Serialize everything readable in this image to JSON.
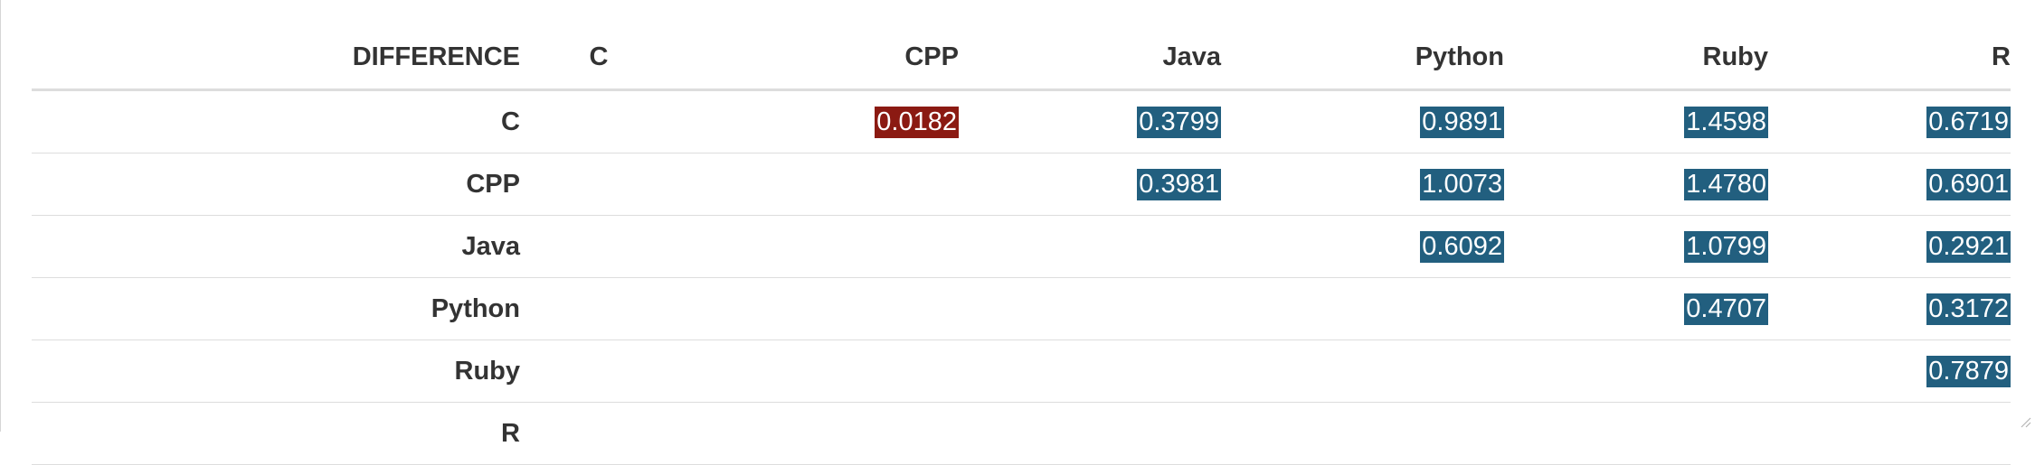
{
  "table": {
    "header": [
      "DIFFERENCE",
      "C",
      "CPP",
      "Java",
      "Python",
      "Ruby",
      "R"
    ],
    "rows": [
      {
        "label": "C",
        "cells": [
          "",
          "0.0182",
          "0.3799",
          "0.9891",
          "1.4598",
          "0.6719"
        ]
      },
      {
        "label": "CPP",
        "cells": [
          "",
          "",
          "0.3981",
          "1.0073",
          "1.4780",
          "0.6901"
        ]
      },
      {
        "label": "Java",
        "cells": [
          "",
          "",
          "",
          "0.6092",
          "1.0799",
          "0.2921"
        ]
      },
      {
        "label": "Python",
        "cells": [
          "",
          "",
          "",
          "",
          "0.4707",
          "0.3172"
        ]
      },
      {
        "label": "Ruby",
        "cells": [
          "",
          "",
          "",
          "",
          "",
          "0.7879"
        ]
      },
      {
        "label": "R",
        "cells": [
          "",
          "",
          "",
          "",
          "",
          ""
        ]
      }
    ],
    "highlight_colors": {
      "positive": "#225f7f",
      "negative": "#8b1a12"
    },
    "negative_cell": {
      "row": "C",
      "column": "CPP"
    }
  }
}
